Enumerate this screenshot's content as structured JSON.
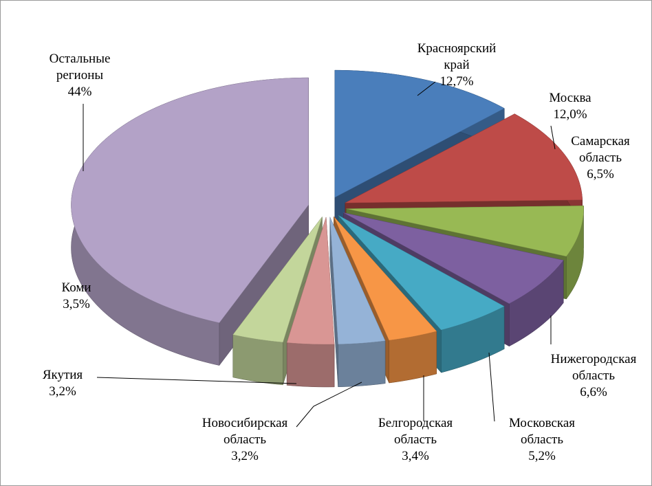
{
  "chart_data": {
    "type": "pie3d",
    "categories": [
      "Красноярский край",
      "Москва",
      "Самарская область",
      "Нижегородская область",
      "Московская область",
      "Белгородская область",
      "Новосибирская область",
      "Якутия",
      "Коми",
      "Остальные регионы"
    ],
    "values": [
      12.7,
      12.0,
      6.5,
      6.6,
      5.2,
      3.4,
      3.2,
      3.2,
      3.5,
      44
    ],
    "value_labels": [
      "12,7%",
      "12,0%",
      "6,5%",
      "6,6%",
      "5,2%",
      "3,4%",
      "3,2%",
      "3,2%",
      "3,5%",
      "44%"
    ],
    "colors": [
      "#4a7ebb",
      "#be4b48",
      "#98b954",
      "#7d60a0",
      "#46aac5",
      "#f79646",
      "#95b3d7",
      "#d99694",
      "#c3d69b",
      "#b3a2c7"
    ]
  }
}
